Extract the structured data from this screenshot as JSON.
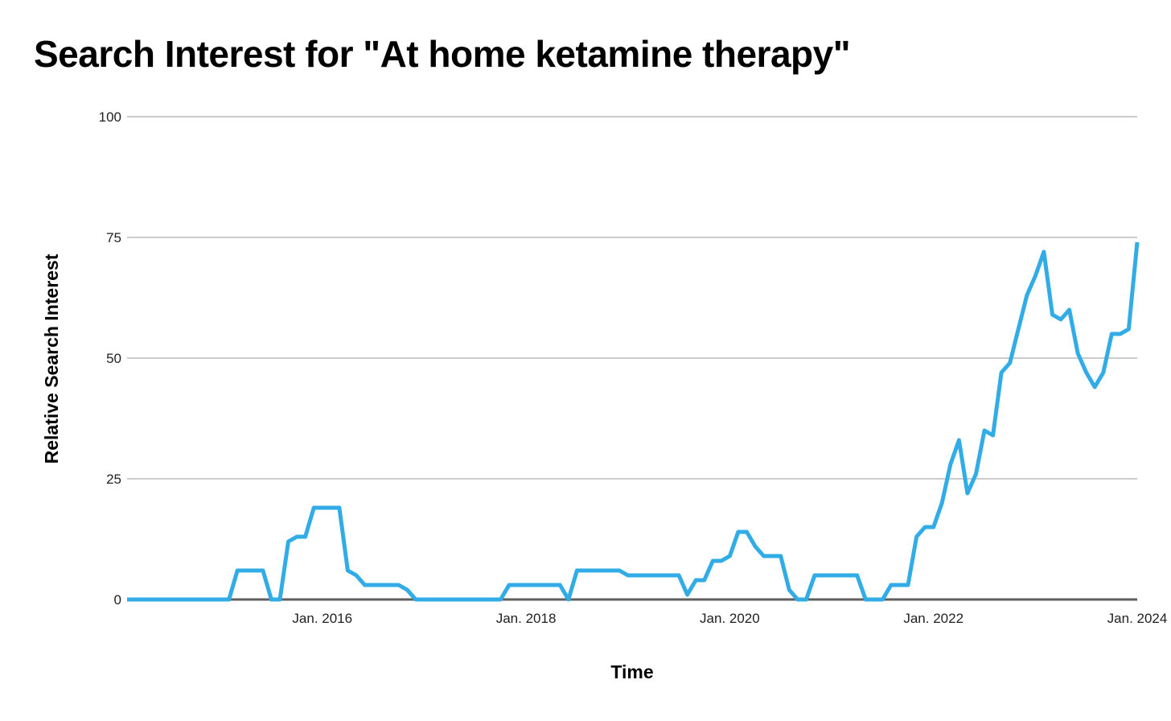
{
  "chart": {
    "background": "#ffffff",
    "colors": {
      "line": "#32ACE6",
      "gridline": "#CCCCCC",
      "axis_line": "#5F5F5F",
      "tick_label": "#1F1F1F",
      "title_text": "#000000"
    }
  },
  "chart_data": {
    "type": "line",
    "title": "Search Interest for \"At home ketamine therapy\"",
    "xlabel": "Time",
    "ylabel": "Relative Search Interest",
    "legend": "none",
    "grid": "horizontal-only",
    "ylim": [
      0,
      100
    ],
    "y_ticks": [
      0,
      25,
      50,
      75,
      100
    ],
    "x_tick_labels": [
      "Jan. 2016",
      "Jan. 2018",
      "Jan. 2020",
      "Jan. 2022",
      "Jan. 2024"
    ],
    "x_tick_month_indices": [
      23,
      47,
      71,
      95,
      119
    ],
    "frequency": "monthly",
    "x_start_month": "Feb 2014",
    "x_end_month": "Jan 2024",
    "series": [
      {
        "name": "At home ketamine therapy",
        "values": [
          0,
          0,
          0,
          0,
          0,
          0,
          0,
          0,
          0,
          0,
          0,
          0,
          0,
          6,
          6,
          6,
          6,
          0,
          0,
          12,
          13,
          13,
          19,
          19,
          19,
          19,
          6,
          5,
          3,
          3,
          3,
          3,
          3,
          2,
          0,
          0,
          0,
          0,
          0,
          0,
          0,
          0,
          0,
          0,
          0,
          3,
          3,
          3,
          3,
          3,
          3,
          3,
          0,
          6,
          6,
          6,
          6,
          6,
          6,
          5,
          5,
          5,
          5,
          5,
          5,
          5,
          1,
          4,
          4,
          8,
          8,
          9,
          14,
          14,
          11,
          9,
          9,
          9,
          2,
          0,
          0,
          5,
          5,
          5,
          5,
          5,
          5,
          0,
          0,
          0,
          3,
          3,
          3,
          13,
          15,
          15,
          20,
          28,
          33,
          22,
          26,
          35,
          34,
          47,
          49,
          56,
          63,
          67,
          72,
          59,
          58,
          60,
          51,
          47,
          44,
          47,
          55,
          55,
          56,
          74
        ]
      }
    ]
  }
}
